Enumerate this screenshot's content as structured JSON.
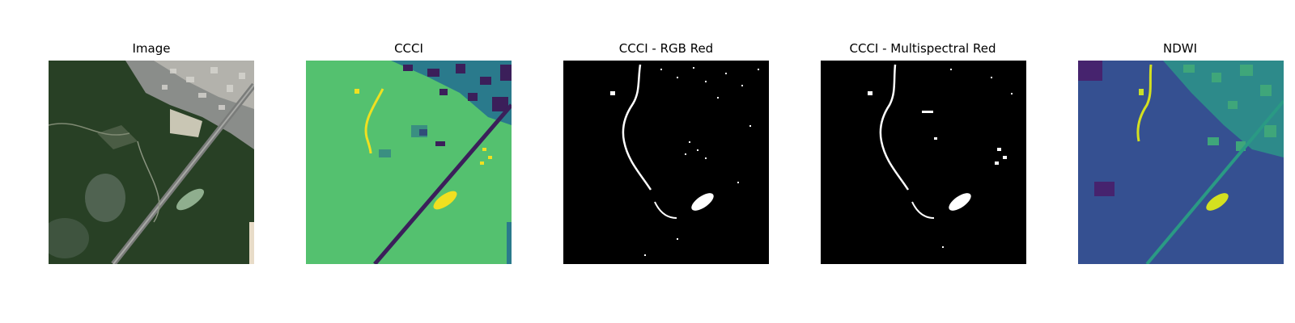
{
  "panels": [
    {
      "title": "Image"
    },
    {
      "title": "CCCI"
    },
    {
      "title": "CCCI - RGB Red"
    },
    {
      "title": "CCCI - Multispectral Red"
    },
    {
      "title": "NDWI"
    }
  ]
}
